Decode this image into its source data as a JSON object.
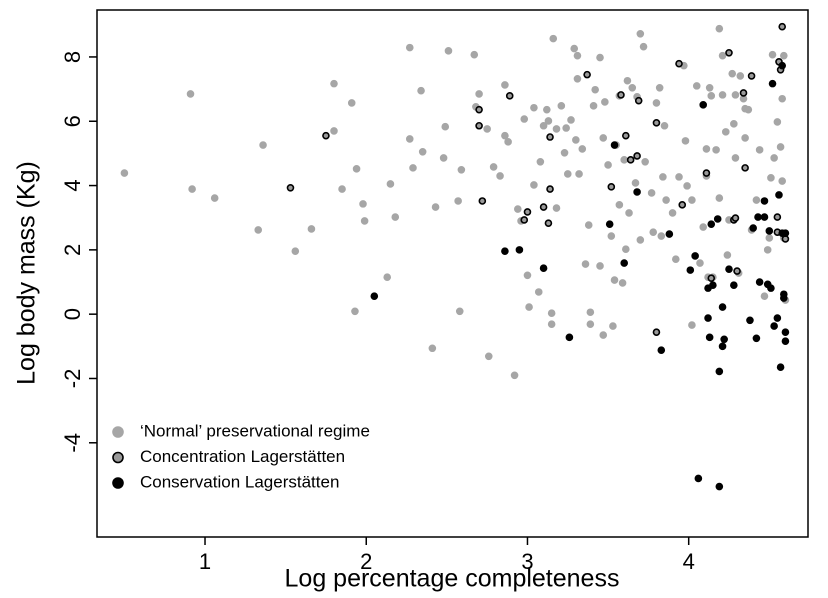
{
  "chart_data": {
    "type": "scatter",
    "xlabel": "Log percentage completeness",
    "ylabel": "Log body mass (Kg)",
    "xlim": [
      0.33,
      4.74
    ],
    "ylim": [
      -6.93,
      9.46
    ],
    "xticks": [
      1,
      2,
      3,
      4
    ],
    "yticks": [
      -4,
      -2,
      0,
      2,
      4,
      6,
      8
    ],
    "grid": false,
    "legend": "lower left",
    "series": [
      {
        "name": "‘Normal’ preservational regime",
        "color": "#a6a6a6",
        "edgecolor": "#a6a6a6",
        "x": [
          0.5,
          0.91,
          0.92,
          1.06,
          1.33,
          1.36,
          1.56,
          1.66,
          1.8,
          1.8,
          1.85,
          1.91,
          1.94,
          1.93,
          1.98,
          1.99,
          2.13,
          2.15,
          2.18,
          2.27,
          2.27,
          2.29,
          2.34,
          2.35,
          2.41,
          2.43,
          2.48,
          2.49,
          2.51,
          2.57,
          2.58,
          2.59,
          2.67,
          2.68,
          2.7,
          2.75,
          2.76,
          2.79,
          2.83,
          2.86,
          2.86,
          2.88,
          2.92,
          2.94,
          2.96,
          2.98,
          3.0,
          3.01,
          3.04,
          3.04,
          3.07,
          3.08,
          3.1,
          3.12,
          3.13,
          3.15,
          3.15,
          3.16,
          3.18,
          3.18,
          3.21,
          3.23,
          3.24,
          3.25,
          3.27,
          3.29,
          3.3,
          3.31,
          3.31,
          3.32,
          3.34,
          3.36,
          3.38,
          3.39,
          3.39,
          3.41,
          3.42,
          3.45,
          3.45,
          3.47,
          3.47,
          3.48,
          3.5,
          3.52,
          3.53,
          3.54,
          3.55,
          3.57,
          3.57,
          3.59,
          3.6,
          3.61,
          3.62,
          3.63,
          3.65,
          3.67,
          3.68,
          3.7,
          3.7,
          3.72,
          3.73,
          3.77,
          3.78,
          3.8,
          3.82,
          3.83,
          3.84,
          3.85,
          3.86,
          3.9,
          3.92,
          3.94,
          3.97,
          3.98,
          3.99,
          4.02,
          4.02,
          4.05,
          4.07,
          4.09,
          4.11,
          4.11,
          4.12,
          4.13,
          4.14,
          4.15,
          4.17,
          4.19,
          4.19,
          4.21,
          4.21,
          4.23,
          4.24,
          4.25,
          4.27,
          4.28,
          4.29,
          4.29,
          4.31,
          4.32,
          4.34,
          4.35,
          4.35,
          4.37,
          4.39,
          4.42,
          4.44,
          4.47,
          4.49,
          4.5,
          4.51,
          4.52,
          4.53,
          4.55,
          4.57,
          4.58,
          4.59,
          4.59,
          4.6,
          4.58
        ],
        "values": [
          4.39,
          6.85,
          3.89,
          3.61,
          2.62,
          5.26,
          1.96,
          2.65,
          7.17,
          5.7,
          3.89,
          6.57,
          4.52,
          0.09,
          3.43,
          2.9,
          1.15,
          4.05,
          3.02,
          8.29,
          5.45,
          4.55,
          6.95,
          5.05,
          -1.06,
          3.33,
          4.86,
          5.83,
          8.19,
          3.52,
          0.09,
          4.49,
          8.07,
          6.45,
          6.85,
          5.76,
          -1.31,
          4.58,
          4.3,
          7.13,
          5.55,
          5.36,
          -1.9,
          3.27,
          2.9,
          6.07,
          1.21,
          0.22,
          6.42,
          4.02,
          0.69,
          4.74,
          5.86,
          6.36,
          6.01,
          0.03,
          -0.31,
          8.57,
          3.3,
          5.76,
          6.48,
          5.02,
          5.79,
          4.36,
          6.04,
          8.26,
          5.42,
          7.32,
          8.04,
          4.36,
          5.14,
          1.56,
          2.77,
          0.06,
          -0.31,
          6.48,
          6.98,
          7.98,
          1.5,
          -0.65,
          5.48,
          6.6,
          4.64,
          2.43,
          -0.37,
          1.06,
          5.26,
          3.4,
          6.79,
          0.97,
          4.8,
          2.02,
          7.26,
          3.15,
          7.04,
          4.08,
          6.76,
          8.72,
          2.31,
          8.32,
          4.74,
          3.77,
          2.55,
          6.57,
          7.04,
          2.43,
          4.27,
          5.86,
          3.55,
          3.15,
          1.71,
          4.27,
          7.73,
          5.39,
          3.99,
          3.55,
          -0.34,
          7.1,
          1.59,
          2.71,
          5.14,
          4.3,
          1.15,
          7.04,
          6.79,
          1.15,
          5.11,
          3.61,
          8.88,
          8.04,
          6.82,
          5.67,
          1.84,
          2.93,
          7.48,
          5.92,
          6.82,
          4.86,
          1.28,
          7.41,
          6.7,
          6.39,
          5.48,
          6.36,
          2.62,
          3.55,
          5.11,
          0.56,
          2.0,
          2.37,
          4.24,
          8.07,
          4.86,
          5.98,
          5.2,
          4.14,
          8.04,
          2.37,
          0.44,
          6.7
        ]
      },
      {
        "name": "Concentration Lagerstätten",
        "color": "#9a9a9a",
        "edgecolor": "#000000",
        "x": [
          1.53,
          1.75,
          2.7,
          2.7,
          2.72,
          2.89,
          2.98,
          3.0,
          3.1,
          3.14,
          3.14,
          3.13,
          3.37,
          3.52,
          3.58,
          3.61,
          3.64,
          3.69,
          3.68,
          3.8,
          3.8,
          3.94,
          3.96,
          4.11,
          4.14,
          4.25,
          4.28,
          4.3,
          4.34,
          4.35,
          4.39,
          4.29,
          4.55,
          4.56,
          4.57,
          4.58,
          4.6,
          4.55
        ],
        "values": [
          3.93,
          5.55,
          6.36,
          5.86,
          3.52,
          6.79,
          2.93,
          3.18,
          3.33,
          3.89,
          5.51,
          2.83,
          7.45,
          3.96,
          6.82,
          5.55,
          4.8,
          6.64,
          4.92,
          5.95,
          -0.56,
          7.79,
          3.4,
          4.39,
          1.12,
          8.13,
          2.93,
          1.34,
          6.88,
          4.55,
          7.41,
          2.99,
          3.02,
          7.85,
          7.6,
          8.94,
          2.34,
          2.55
        ]
      },
      {
        "name": "Conservation Lagerstätten",
        "color": "#000000",
        "edgecolor": "#000000",
        "x": [
          2.05,
          2.86,
          2.95,
          3.1,
          3.26,
          3.51,
          3.54,
          3.6,
          3.68,
          3.83,
          3.88,
          4.01,
          4.04,
          4.06,
          4.09,
          4.12,
          4.12,
          4.13,
          4.14,
          4.15,
          4.18,
          4.19,
          4.19,
          4.21,
          4.21,
          4.22,
          4.25,
          4.28,
          4.38,
          4.4,
          4.42,
          4.43,
          4.44,
          4.47,
          4.47,
          4.49,
          4.5,
          4.51,
          4.52,
          4.53,
          4.55,
          4.56,
          4.57,
          4.58,
          4.58,
          4.59,
          4.6,
          4.6,
          4.6,
          4.59
        ],
        "values": [
          0.56,
          1.96,
          2.0,
          1.43,
          -0.72,
          2.8,
          5.26,
          1.59,
          3.8,
          -1.12,
          2.49,
          1.37,
          1.81,
          -5.11,
          6.51,
          0.81,
          -0.12,
          -0.72,
          2.8,
          0.9,
          2.96,
          -1.78,
          -5.36,
          -1.0,
          0.22,
          -0.78,
          1.4,
          0.9,
          -0.19,
          2.68,
          -0.75,
          3.02,
          1.0,
          3.52,
          3.02,
          0.93,
          2.59,
          0.81,
          7.17,
          -0.37,
          -0.12,
          3.71,
          -1.65,
          2.52,
          7.73,
          0.5,
          2.52,
          -0.56,
          -0.84,
          0.62
        ]
      }
    ]
  }
}
